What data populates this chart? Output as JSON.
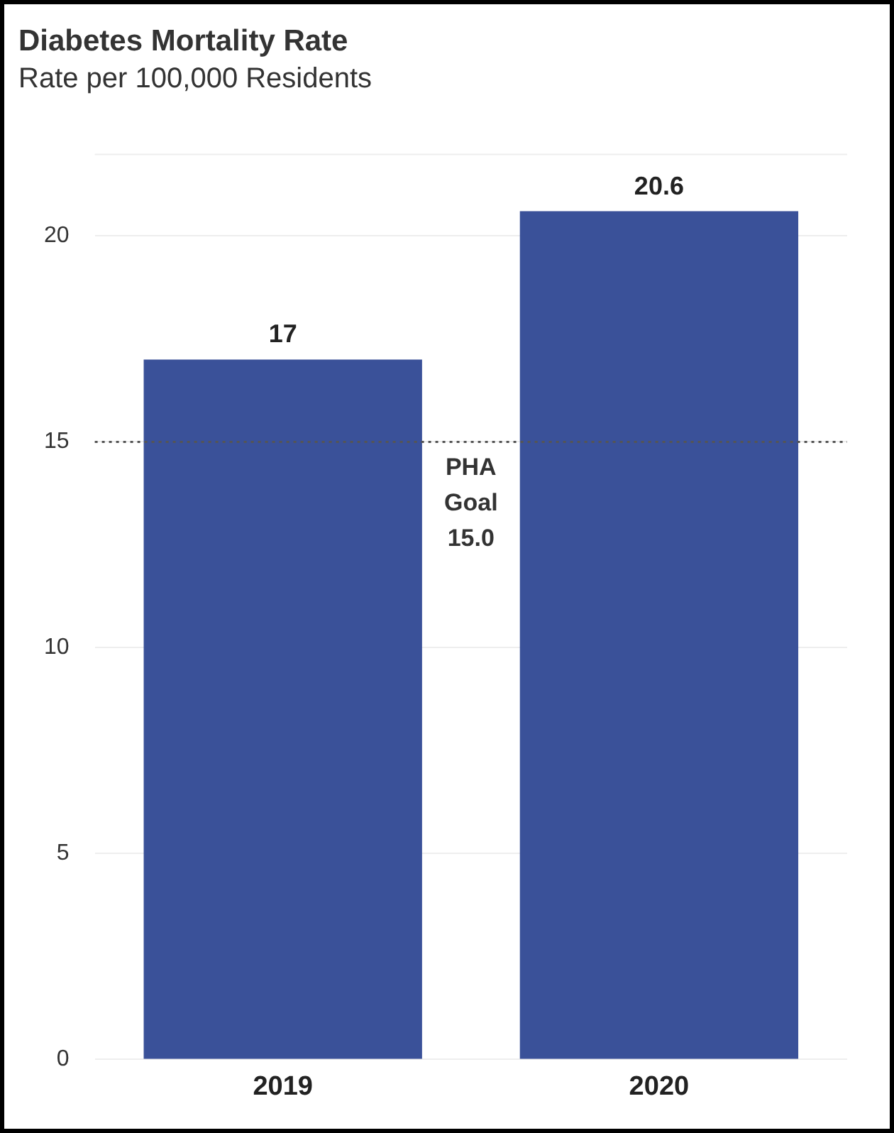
{
  "chart_data": {
    "type": "bar",
    "title": "Diabetes Mortality Rate",
    "subtitle": "Rate per 100,000 Residents",
    "categories": [
      "2019",
      "2020"
    ],
    "values": [
      17,
      20.6
    ],
    "color": "#3a5199",
    "ylim": [
      0,
      22
    ],
    "yticks": [
      0,
      5,
      10,
      15,
      20
    ],
    "grid": "y",
    "data_labels": true,
    "legend": false,
    "ref_lines": [
      {
        "axis": "y",
        "value": 15,
        "label": "PHA Goal 15.0",
        "color": "#555555",
        "line_style": "dotted"
      }
    ]
  }
}
